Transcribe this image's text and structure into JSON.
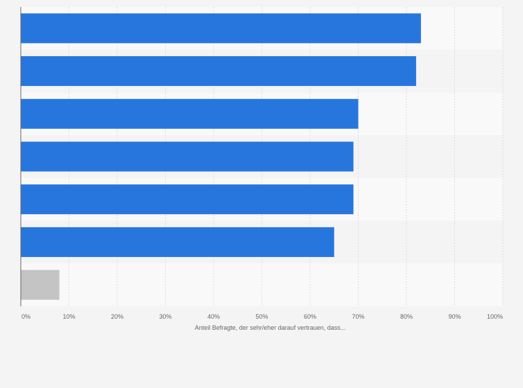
{
  "chart_data": {
    "type": "bar",
    "orientation": "horizontal",
    "title": "",
    "xlabel": "Anteil Befragte, der sehr/eher darauf vertrauen, dass...",
    "ylabel": "",
    "xlim": [
      0,
      100
    ],
    "x_ticks": [
      "0%",
      "10%",
      "20%",
      "30%",
      "40%",
      "50%",
      "60%",
      "70%",
      "80%",
      "90%",
      "100%"
    ],
    "grid": true,
    "categories": [
      "",
      "",
      "",
      "",
      "",
      "",
      ""
    ],
    "values": [
      83,
      82,
      70,
      69,
      69,
      65,
      8
    ],
    "bar_colors": [
      "#2776dd",
      "#2776dd",
      "#2776dd",
      "#2776dd",
      "#2776dd",
      "#2776dd",
      "#c4c4c4"
    ]
  },
  "colors": {
    "bar_primary": "#2776dd",
    "bar_secondary": "#c4c4c4",
    "background": "#f4f4f4",
    "band_light": "#f9f9f9",
    "band_dark": "#f4f4f4",
    "gridline": "#dcdcdc",
    "axis": "#666666"
  }
}
